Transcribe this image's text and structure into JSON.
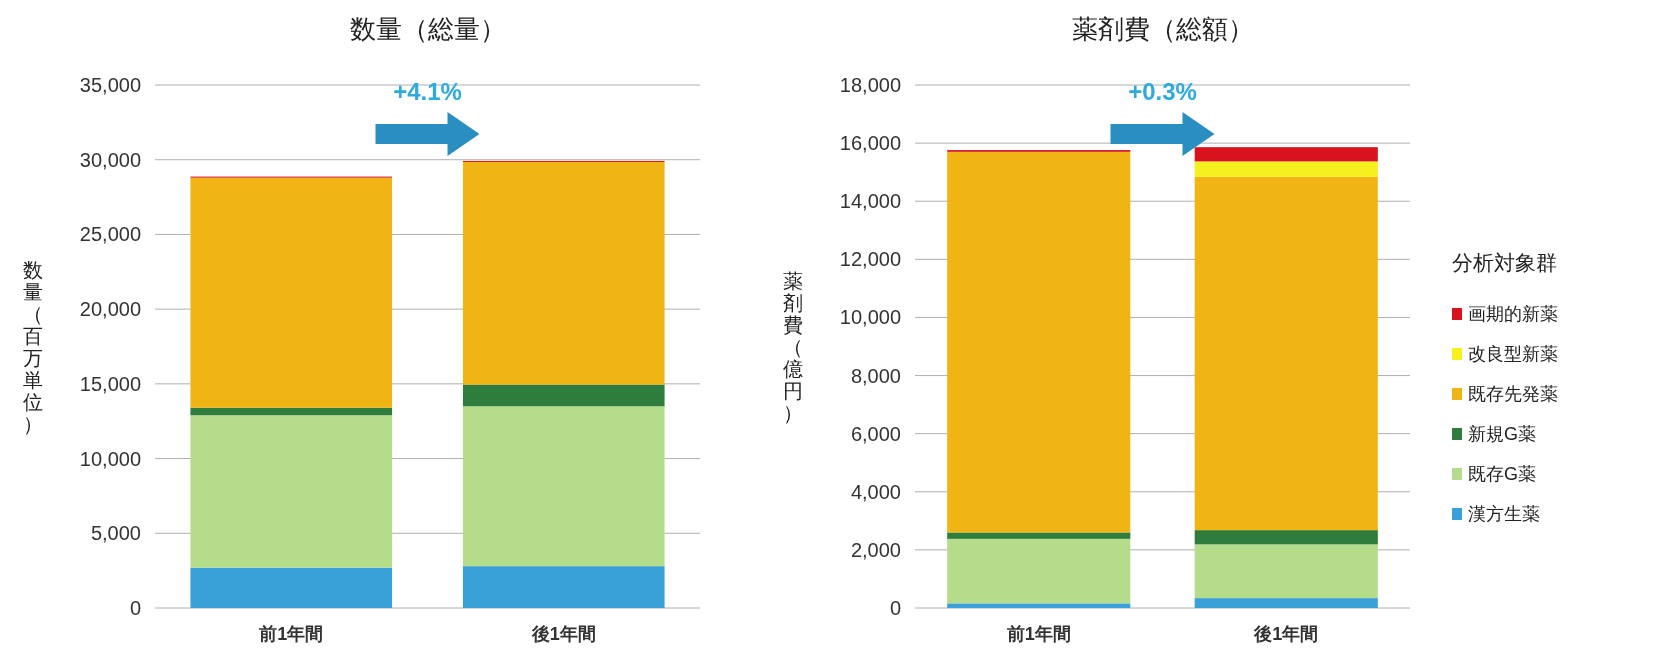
{
  "chart_data": [
    {
      "type": "bar",
      "title": "数量（総量）",
      "ylabel": "数量（百万単位）",
      "categories": [
        "前1年間",
        "後1年間"
      ],
      "stacked": true,
      "grid": "y",
      "legend": false,
      "ylim": [
        0,
        35000
      ],
      "yticks": [
        0,
        {
          "value": 5000,
          "label": "5,000"
        },
        {
          "value": 10000,
          "label": "10,000"
        },
        {
          "value": 15000,
          "label": "15,000"
        },
        {
          "value": 20000,
          "label": "20,000"
        },
        {
          "value": 25000,
          "label": "25,000"
        },
        {
          "value": 30000,
          "label": "30,000"
        },
        {
          "value": 35000,
          "label": "35,000"
        }
      ],
      "annotations": [
        "+4.1%"
      ],
      "series": [
        {
          "color": "#3aa0d8",
          "values": [
            2700,
            2800
          ]
        },
        {
          "color": "#b5dc8a",
          "values": [
            10200,
            10700
          ]
        },
        {
          "color": "#2e7d3c",
          "values": [
            500,
            1450
          ]
        },
        {
          "color": "#f0b414",
          "values": [
            15400,
            14900
          ]
        },
        {
          "color": "#d7141e",
          "values": [
            70,
            70
          ]
        }
      ]
    },
    {
      "type": "bar",
      "title": "薬剤費（総額）",
      "ylabel": "薬剤費（億円）",
      "categories": [
        "前1年間",
        "後1年間"
      ],
      "stacked": true,
      "grid": "y",
      "legend": "right",
      "legend_title": "分析対象群",
      "ylim": [
        0,
        18000
      ],
      "yticks": [
        0,
        {
          "value": 2000,
          "label": "2,000"
        },
        {
          "value": 4000,
          "label": "4,000"
        },
        {
          "value": 6000,
          "label": "6,000"
        },
        {
          "value": 8000,
          "label": "8,000"
        },
        {
          "value": 10000,
          "label": "10,000"
        },
        {
          "value": 12000,
          "label": "12,000"
        },
        {
          "value": 14000,
          "label": "14,000"
        },
        {
          "value": 16000,
          "label": "16,000"
        },
        {
          "value": 18000,
          "label": "18,000"
        }
      ],
      "annotations": [
        "+0.3%"
      ],
      "series": [
        {
          "name": "漢方生薬",
          "color": "#3aa0d8",
          "values": [
            160,
            340
          ]
        },
        {
          "name": "既存G薬",
          "color": "#b5dc8a",
          "values": [
            2220,
            1850
          ]
        },
        {
          "name": "新規G薬",
          "color": "#2e7d3c",
          "values": [
            220,
            490
          ]
        },
        {
          "name": "既存先発薬",
          "color": "#f0b414",
          "values": [
            13100,
            12160
          ]
        },
        {
          "name": "改良型新薬",
          "color": "#f5f01e",
          "values": [
            null,
            530
          ]
        },
        {
          "name": "画期的新薬",
          "color": "#d7141e",
          "values": [
            60,
            490
          ]
        }
      ]
    }
  ]
}
